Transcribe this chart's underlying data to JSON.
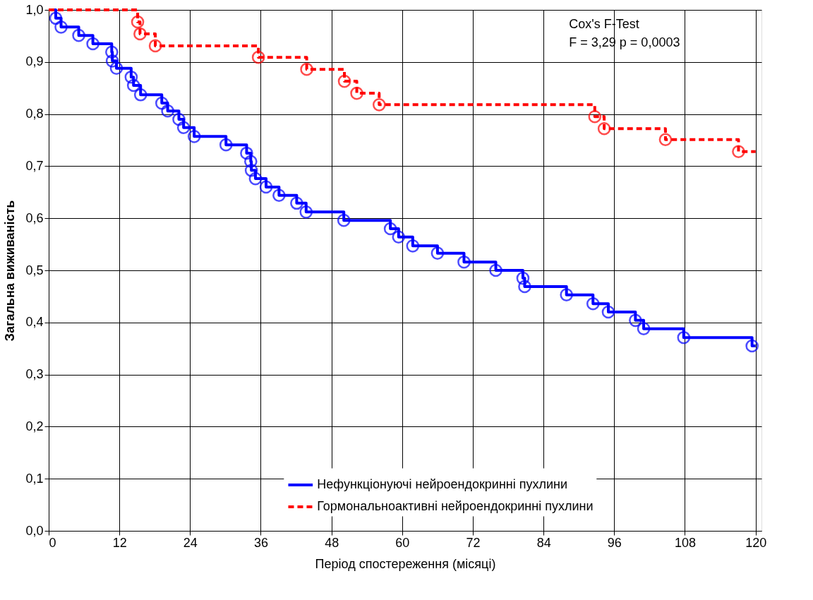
{
  "chart_data": {
    "type": "step",
    "xlabel": "Період спостереження (місяці)",
    "ylabel": "Загальна виживаність",
    "xlim": [
      0,
      121
    ],
    "xticks": [
      0,
      12,
      24,
      36,
      48,
      60,
      72,
      84,
      96,
      108,
      120
    ],
    "ylim": [
      0,
      1.0
    ],
    "yticks": [
      {
        "value": 0,
        "label": "0,0"
      },
      {
        "value": 0.1,
        "label": "0,1"
      },
      {
        "value": 0.2,
        "label": "0,2"
      },
      {
        "value": 0.3,
        "label": "0,3"
      },
      {
        "value": 0.4,
        "label": "0,4"
      },
      {
        "value": 0.5,
        "label": "0,5"
      },
      {
        "value": 0.6,
        "label": "0,6"
      },
      {
        "value": 0.7,
        "label": "0,7"
      },
      {
        "value": 0.8,
        "label": "0,8"
      },
      {
        "value": 0.9,
        "label": "0,9"
      },
      {
        "value": 1.0,
        "label": "1,0"
      }
    ],
    "grid": true,
    "legend": "bottom right",
    "marker": "circle",
    "annotations": [
      "Cox's F-Test",
      "F = 3,29   p = 0,0003"
    ],
    "series": [
      {
        "name": "Нефункціонуючі нейроендокринні пухлини",
        "color": "#0000ff",
        "line_style": "solid",
        "x": [
          0,
          1.2,
          2.1,
          5.1,
          7.5,
          10.7,
          10.8,
          11.5,
          14,
          14.4,
          15.6,
          19.2,
          20.2,
          22.1,
          22.9,
          24.7,
          30.1,
          33.6,
          34.3,
          34.4,
          35.1,
          36.9,
          39.1,
          42.1,
          43.7,
          50.1,
          58,
          59.4,
          61.8,
          66,
          70.5,
          75.9,
          80.5,
          80.8,
          87.9,
          92.4,
          95,
          99.6,
          101,
          107.8,
          119.4,
          120
        ],
        "values": [
          1.0,
          0.984,
          0.967,
          0.951,
          0.935,
          0.919,
          0.902,
          0.888,
          0.871,
          0.855,
          0.837,
          0.821,
          0.806,
          0.79,
          0.774,
          0.757,
          0.741,
          0.725,
          0.709,
          0.692,
          0.676,
          0.66,
          0.644,
          0.629,
          0.612,
          0.596,
          0.58,
          0.564,
          0.547,
          0.533,
          0.516,
          0.5,
          0.485,
          0.469,
          0.453,
          0.436,
          0.42,
          0.404,
          0.388,
          0.371,
          0.355,
          0.355
        ]
      },
      {
        "name": "Гормональноактивні нейроендокринні пухлини",
        "color": "#ff0000",
        "line_style": "dashed",
        "x": [
          0,
          15.1,
          15.5,
          18.1,
          35.6,
          43.8,
          50.2,
          52.3,
          56.1,
          92.7,
          94.3,
          104.7,
          117.1,
          120
        ],
        "values": [
          1.0,
          0.977,
          0.954,
          0.931,
          0.909,
          0.886,
          0.863,
          0.84,
          0.818,
          0.795,
          0.772,
          0.751,
          0.728,
          0.728
        ]
      }
    ]
  }
}
